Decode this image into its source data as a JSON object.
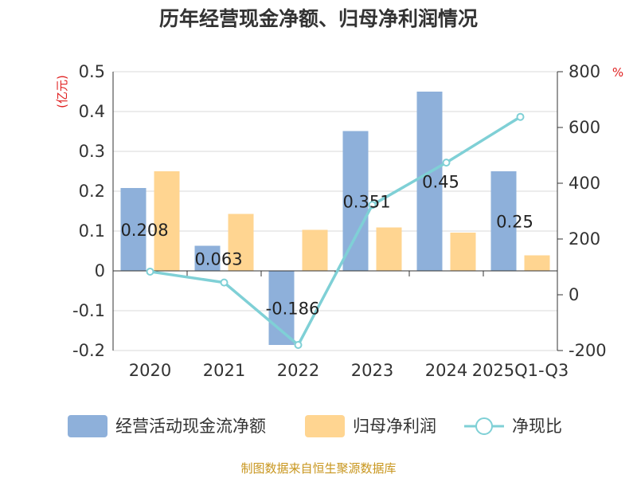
{
  "title": "历年经营现金净额、归母净利润情况",
  "source": "制图数据来自恒生聚源数据库",
  "colors": {
    "cash": "#8eb0da",
    "profit": "#ffd591",
    "ratio": "#7fd0d6"
  },
  "chart_data": {
    "type": "bar",
    "categories": [
      "2020",
      "2021",
      "2022",
      "2023",
      "2024",
      "2025Q1-Q3"
    ],
    "series": [
      {
        "name": "经营活动现金流净额",
        "type": "bar",
        "axis": "left",
        "color": "#8eb0da",
        "values": [
          0.208,
          0.063,
          -0.186,
          0.351,
          0.45,
          0.25
        ],
        "labels": [
          "0.208",
          "0.063",
          "-0.186",
          "0.351",
          "0.45",
          "0.25"
        ]
      },
      {
        "name": "归母净利润",
        "type": "bar",
        "axis": "left",
        "color": "#ffd591",
        "values": [
          0.25,
          0.143,
          0.103,
          0.109,
          0.096,
          0.039
        ]
      },
      {
        "name": "净现比",
        "type": "line",
        "axis": "right",
        "color": "#7fd0d6",
        "values": [
          83,
          44,
          -180,
          322,
          474,
          638
        ]
      }
    ],
    "y_left": {
      "unit": "(亿元)",
      "ylim": [
        -0.2,
        0.5
      ],
      "ticks": [
        "-0.2",
        "-0.1",
        "0",
        "0.1",
        "0.2",
        "0.3",
        "0.4",
        "0.5"
      ]
    },
    "y_right": {
      "unit": "%",
      "ylim": [
        -200,
        800
      ],
      "ticks": [
        "-200",
        "0",
        "200",
        "400",
        "600",
        "800"
      ]
    },
    "grid": true,
    "legend": "bottom"
  }
}
